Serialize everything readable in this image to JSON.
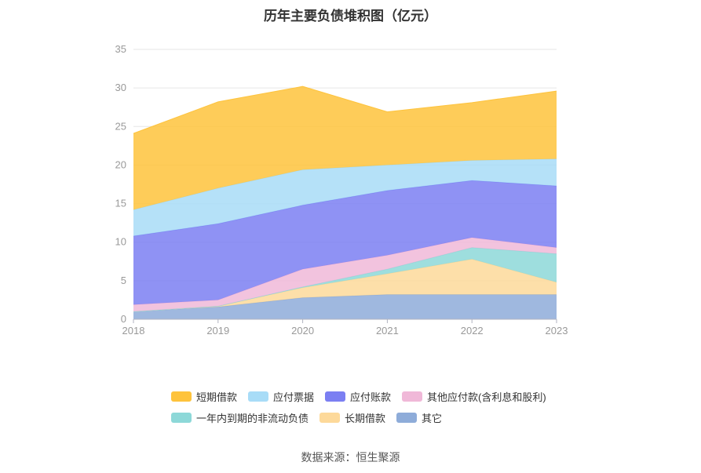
{
  "title": "历年主要负债堆积图（亿元）",
  "source": "数据来源：恒生聚源",
  "chart_data": {
    "type": "area",
    "stacked": true,
    "title": "历年主要负债堆积图（亿元）",
    "x": [
      "2018",
      "2019",
      "2020",
      "2021",
      "2022",
      "2023"
    ],
    "ylim": [
      0,
      35
    ],
    "yticks": [
      0,
      5,
      10,
      15,
      20,
      25,
      30,
      35
    ],
    "grid": true,
    "legend_position": "bottom",
    "series": [
      {
        "name": "其它",
        "color": "#8eacd9",
        "values": [
          1.0,
          1.6,
          2.8,
          3.2,
          3.2,
          3.2
        ]
      },
      {
        "name": "长期借款",
        "color": "#fdd99a",
        "values": [
          0.0,
          0.1,
          1.3,
          2.7,
          4.6,
          1.6
        ]
      },
      {
        "name": "一年内到期的非流动负债",
        "color": "#8dd8d8",
        "values": [
          0.0,
          0.0,
          0.1,
          0.6,
          1.5,
          3.7
        ]
      },
      {
        "name": "其他应付款(含利息和股利)",
        "color": "#f0b8d8",
        "values": [
          0.9,
          0.8,
          2.3,
          1.8,
          1.3,
          0.8
        ]
      },
      {
        "name": "应付账款",
        "color": "#7b7ff2",
        "values": [
          8.9,
          9.9,
          8.3,
          8.4,
          7.4,
          8.0
        ]
      },
      {
        "name": "应付票据",
        "color": "#a8dcf7",
        "values": [
          3.4,
          4.6,
          4.6,
          3.3,
          2.6,
          3.5
        ]
      },
      {
        "name": "短期借款",
        "color": "#fec33c",
        "values": [
          9.9,
          11.2,
          10.8,
          6.9,
          7.5,
          8.8
        ]
      }
    ]
  },
  "legend": {
    "row1": [
      "短期借款",
      "应付票据",
      "应付账款",
      "其他应付款(含利息和股利)"
    ],
    "row2": [
      "一年内到期的非流动负债",
      "长期借款",
      "其它"
    ]
  }
}
